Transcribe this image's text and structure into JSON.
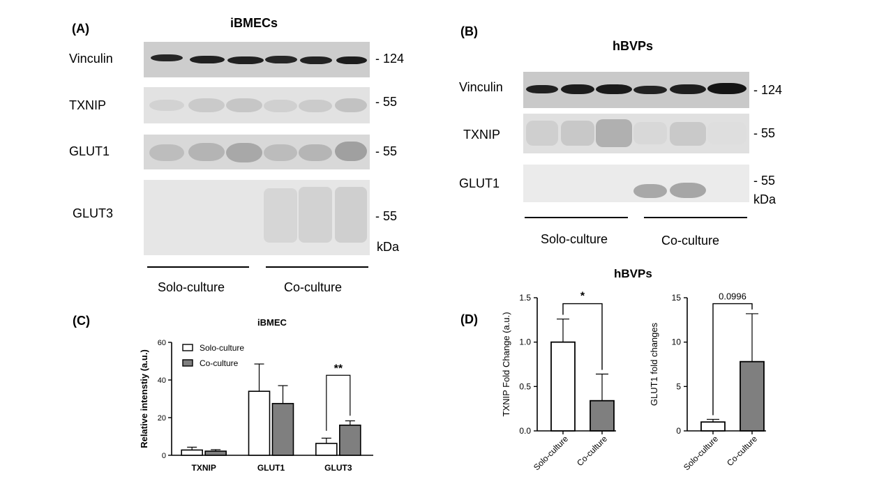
{
  "panelA": {
    "letter": "(A)",
    "title": "iBMECs",
    "rows": [
      {
        "label": "Vinculin",
        "mw": "- 124"
      },
      {
        "label": "TXNIP",
        "mw": "- 55"
      },
      {
        "label": "GLUT1",
        "mw": "- 55"
      },
      {
        "label": "GLUT3",
        "mw": "- 55"
      }
    ],
    "unit": "kDa",
    "groups": [
      "Solo-culture",
      "Co-culture"
    ]
  },
  "panelB": {
    "letter": "(B)",
    "title": "hBVPs",
    "rows": [
      {
        "label": "Vinculin",
        "mw": "- 124"
      },
      {
        "label": "TXNIP",
        "mw": "- 55"
      },
      {
        "label": "GLUT1",
        "mw": "- 55"
      }
    ],
    "unit": "kDa",
    "groups": [
      "Solo-culture",
      "Co-culture"
    ]
  },
  "panelC": {
    "letter": "(C)"
  },
  "panelD": {
    "letter": "(D)",
    "title": "hBVPs"
  },
  "colors": {
    "solo": "#ffffff",
    "co": "#7f7f7f",
    "stroke": "#000000"
  },
  "chart_data": [
    {
      "id": "C",
      "type": "bar",
      "title": "iBMEC",
      "ylabel": "Relative intenstiy (a.u.)",
      "xlabel": "",
      "categories": [
        "TXNIP",
        "GLUT1",
        "GLUT3"
      ],
      "ylim": [
        0,
        60
      ],
      "yticks": [
        0,
        20,
        40,
        60
      ],
      "legend_position": "top-left",
      "series": [
        {
          "name": "Solo-culture",
          "values": [
            2.8,
            34,
            6.3
          ],
          "errors": [
            1.5,
            14.5,
            2.8
          ]
        },
        {
          "name": "Co-culture",
          "values": [
            2.2,
            27.5,
            16
          ],
          "errors": [
            0.8,
            9.5,
            2.3
          ]
        }
      ],
      "annotations": [
        {
          "category": "GLUT3",
          "text": "**"
        }
      ]
    },
    {
      "id": "D1",
      "type": "bar",
      "title": "",
      "ylabel": "TXNIP Fold Change (a.u.)",
      "xlabel": "",
      "categories": [
        "Solo-culture",
        "Co-culture"
      ],
      "values": [
        1.0,
        0.34
      ],
      "errors": [
        0.26,
        0.3
      ],
      "ylim": [
        0,
        1.5
      ],
      "yticks": [
        "0.0",
        "0.5",
        "1.0",
        "1.5"
      ],
      "annotation": "*"
    },
    {
      "id": "D2",
      "type": "bar",
      "title": "",
      "ylabel": "GLUT1 fold changes",
      "xlabel": "",
      "categories": [
        "Solo-culture",
        "Co-culture"
      ],
      "values": [
        1.0,
        7.8
      ],
      "errors": [
        0.3,
        5.4
      ],
      "ylim": [
        0,
        15
      ],
      "yticks": [
        "0",
        "5",
        "10",
        "15"
      ],
      "annotation": "0.0996"
    }
  ]
}
